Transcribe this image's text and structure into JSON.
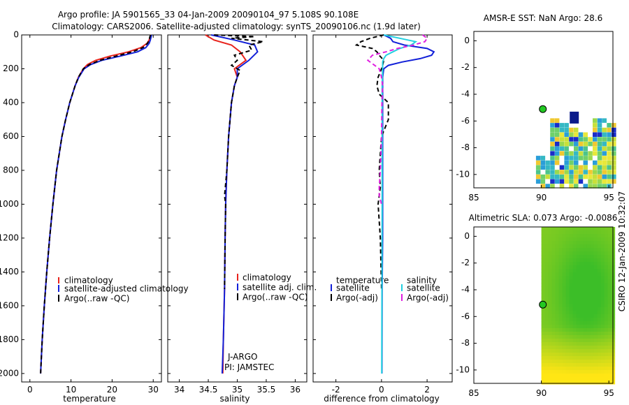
{
  "header": {
    "title_line1": "Argo profile: JA 5901565_33 04-Jan-2009 20090104_97 5.108S 90.108E",
    "title_line2": "Climatology: CARS2006. Satellite-adjusted climatology: synTS_20090106.nc (1.9d later)"
  },
  "side_label": "CSIRO 12-Jan-2009 10:32:07",
  "colors": {
    "climatology": "#e8231c",
    "satellite": "#1220d8",
    "argo": "#000000",
    "salinity_sat": "#22d0e0",
    "salinity_argo": "#e020e0"
  },
  "chart_data": [
    {
      "id": "temperature",
      "type": "line",
      "xlabel": "temperature",
      "xlim": [
        -2,
        32
      ],
      "ylim": [
        2050,
        0
      ],
      "xticks": [
        0,
        10,
        20,
        30
      ],
      "yticks": [
        0,
        200,
        400,
        600,
        800,
        1000,
        1200,
        1400,
        1600,
        1800,
        2000
      ],
      "legend": [
        "climatology",
        "satellite-adjusted climatology",
        "Argo(..raw -QC)"
      ],
      "series": [
        {
          "name": "climatology",
          "depth": [
            0,
            10,
            30,
            50,
            75,
            100,
            125,
            150,
            175,
            200,
            250,
            300,
            400,
            500,
            600,
            800,
            1000,
            1200,
            1400,
            1600,
            1800,
            2000
          ],
          "values": [
            29.5,
            29.3,
            29,
            28.5,
            27,
            24,
            19.5,
            16,
            14,
            13,
            11.8,
            11,
            9.7,
            8.7,
            7.8,
            6.5,
            5.6,
            4.8,
            4.1,
            3.5,
            3,
            2.6
          ]
        },
        {
          "name": "satellite-adjusted climatology",
          "depth": [
            0,
            10,
            30,
            50,
            75,
            100,
            125,
            150,
            175,
            200,
            250,
            300,
            400,
            500,
            600,
            800,
            1000,
            1200,
            1400,
            1600,
            1800,
            2000
          ],
          "values": [
            29.6,
            29.5,
            29.3,
            29,
            28.2,
            26.2,
            22,
            17.5,
            14.8,
            13.2,
            11.9,
            11,
            9.7,
            8.7,
            7.8,
            6.5,
            5.6,
            4.8,
            4.1,
            3.5,
            3,
            2.6
          ]
        },
        {
          "name": "Argo(..raw -QC)",
          "depth": [
            0,
            10,
            30,
            50,
            75,
            100,
            125,
            150,
            175,
            200,
            250,
            300,
            400,
            500,
            600,
            800,
            1000,
            1200,
            1400,
            1600,
            1800,
            2000
          ],
          "values": [
            29.4,
            29.2,
            29,
            28.6,
            27.5,
            25,
            21,
            17,
            14.5,
            13,
            11.8,
            11,
            9.7,
            8.7,
            7.8,
            6.5,
            5.6,
            4.8,
            4.1,
            3.5,
            3,
            2.6
          ]
        }
      ]
    },
    {
      "id": "salinity",
      "type": "line",
      "xlabel": "salinity",
      "xlim": [
        33.8,
        36.2
      ],
      "ylim": [
        2050,
        0
      ],
      "xticks": [
        34,
        34.5,
        35,
        35.5,
        36
      ],
      "xticklabels": [
        "34",
        "34.5",
        "35",
        "35.5",
        "36"
      ],
      "yticks": [
        0,
        200,
        400,
        600,
        800,
        1000,
        1200,
        1400,
        1600,
        1800,
        2000
      ],
      "legend": [
        "climatology",
        "satellite adj. clim.",
        "Argo(..raw -QC)"
      ],
      "annotation": [
        "J-ARGO",
        "PI: JAMSTEC"
      ],
      "series": [
        {
          "name": "climatology",
          "depth": [
            0,
            30,
            60,
            100,
            150,
            200,
            250,
            300,
            400,
            600,
            800,
            1000,
            1200,
            1500,
            1800,
            2000
          ],
          "values": [
            34.45,
            34.6,
            34.9,
            35.05,
            35.15,
            34.95,
            35.0,
            34.95,
            34.9,
            34.85,
            34.82,
            34.8,
            34.79,
            34.78,
            34.76,
            34.75
          ]
        },
        {
          "name": "satellite adj. clim.",
          "depth": [
            0,
            30,
            60,
            100,
            150,
            200,
            250,
            300,
            400,
            600,
            800,
            1000,
            1200,
            1500,
            1800,
            2000
          ],
          "values": [
            34.55,
            34.95,
            35.3,
            35.35,
            35.2,
            35.0,
            35.0,
            34.95,
            34.9,
            34.85,
            34.82,
            34.8,
            34.79,
            34.78,
            34.76,
            34.74
          ]
        },
        {
          "name": "Argo(..raw -QC)",
          "depth": [
            0,
            10,
            20,
            40,
            60,
            90,
            120,
            150,
            180,
            210,
            250,
            300,
            400,
            600,
            800,
            950,
            1000,
            1200,
            1500
          ],
          "values": [
            34.6,
            35.3,
            34.9,
            35.45,
            35.2,
            35.25,
            34.95,
            35.0,
            34.9,
            35.05,
            35.0,
            34.95,
            34.9,
            34.85,
            34.82,
            34.78,
            34.8,
            34.79,
            34.78
          ]
        }
      ]
    },
    {
      "id": "difference",
      "type": "line",
      "xlabel": "difference from climatology",
      "xlim": [
        -3,
        3.1
      ],
      "ylim": [
        2050,
        0
      ],
      "xticks": [
        -2,
        0,
        2
      ],
      "yticks": [
        0,
        200,
        400,
        600,
        800,
        1000,
        1200,
        1400,
        1600,
        1800,
        2000
      ],
      "legend": {
        "temperature_header": "temperature",
        "salinity_header": "salinity",
        "items": [
          "satellite",
          "Argo(-adj)",
          "satellite",
          "Argo(-adj)"
        ]
      },
      "series": [
        {
          "name": "temperature satellite",
          "depth": [
            0,
            20,
            40,
            60,
            80,
            100,
            120,
            140,
            160,
            180,
            200,
            250,
            300,
            500,
            800,
            1000,
            1200,
            1500,
            2000
          ],
          "values": [
            0.1,
            0.4,
            0.5,
            1.0,
            2.0,
            2.3,
            2.2,
            1.7,
            0.9,
            0.3,
            0.1,
            0.05,
            0.05,
            0.05,
            0.05,
            0.05,
            0.05,
            0.03,
            0.02
          ]
        },
        {
          "name": "temperature Argo(-adj)",
          "depth": [
            0,
            20,
            40,
            60,
            80,
            100,
            120,
            150,
            180,
            200,
            250,
            300,
            350,
            400,
            500,
            600,
            700,
            800,
            900,
            1000,
            1200,
            1500
          ],
          "values": [
            0.1,
            -0.5,
            -0.9,
            -1.1,
            -0.4,
            -0.2,
            -0.1,
            0.1,
            0.05,
            0.0,
            -0.15,
            -0.2,
            -0.1,
            0.3,
            0.3,
            0.0,
            -0.05,
            -0.1,
            -0.05,
            -0.15,
            -0.05,
            0.0
          ]
        },
        {
          "name": "salinity satellite",
          "depth": [
            0,
            20,
            40,
            60,
            80,
            100,
            120,
            140,
            160,
            180,
            200,
            300,
            500,
            800,
            1000,
            1500,
            2000
          ],
          "values": [
            0.1,
            0.8,
            1.5,
            1.3,
            0.8,
            0.5,
            0.2,
            0.1,
            0.05,
            0.05,
            0.05,
            0.03,
            0.03,
            0.03,
            0.03,
            0.02,
            0.01
          ]
        },
        {
          "name": "salinity Argo(-adj)",
          "depth": [
            0,
            20,
            40,
            60,
            80,
            100,
            120,
            150,
            180,
            200,
            250,
            300,
            400,
            600,
            800,
            900,
            950,
            1000
          ],
          "values": [
            1.8,
            2.0,
            1.9,
            1.4,
            0.7,
            0.2,
            -0.4,
            -0.6,
            -0.3,
            -0.1,
            0.0,
            0.05,
            0.02,
            0.0,
            -0.05,
            -0.1,
            -0.1,
            0.0
          ]
        }
      ]
    },
    {
      "id": "sst_map",
      "type": "heatmap",
      "title": "AMSR-E SST: NaN Argo: 28.6",
      "xlim": [
        85,
        95.3
      ],
      "ylim": [
        -11,
        0.7
      ],
      "xticks": [
        85,
        90,
        95
      ],
      "yticks": [
        0,
        -2,
        -4,
        -6,
        -8,
        -10
      ],
      "argo_position": [
        90.108,
        -5.108
      ]
    },
    {
      "id": "sla_map",
      "type": "heatmap",
      "title": "Altimetric SLA: 0.073 Argo: -0.0086",
      "xlim": [
        85,
        95.3
      ],
      "ylim": [
        -11,
        0.7
      ],
      "xticks": [
        85,
        90,
        95
      ],
      "yticks": [
        0,
        -2,
        -4,
        -6,
        -8,
        -10
      ],
      "argo_position": [
        90.108,
        -5.108
      ]
    }
  ]
}
